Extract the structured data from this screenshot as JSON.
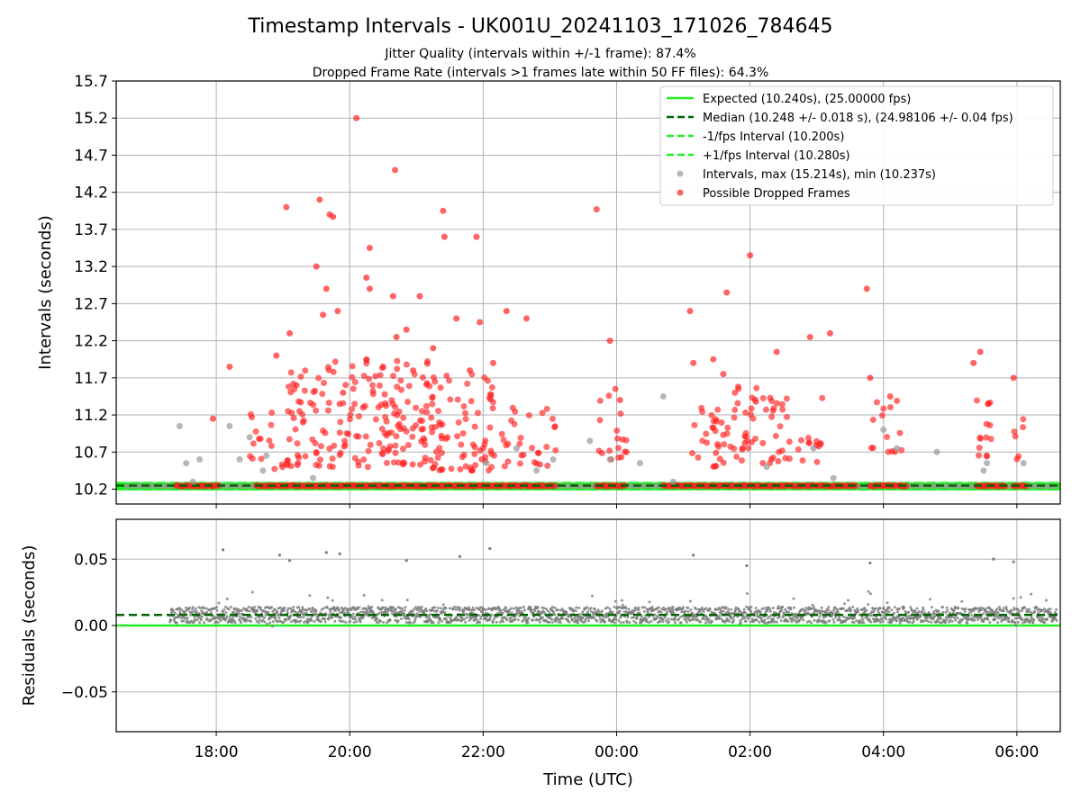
{
  "figure": {
    "title": "Timestamp Intervals - UK001U_20241103_171026_784645",
    "subtitle_1": "Jitter Quality (intervals within +/-1 frame): 87.4%",
    "subtitle_2": "Dropped Frame Rate (intervals >1 frames late within 50 FF files): 64.3%"
  },
  "chart_data": [
    {
      "type": "scatter",
      "ylabel": "Intervals (seconds)",
      "ylim": [
        10.0,
        15.7
      ],
      "y_ticks": [
        "10.2",
        "10.7",
        "11.2",
        "11.7",
        "12.2",
        "12.7",
        "13.2",
        "13.7",
        "14.2",
        "14.7",
        "15.2",
        "15.7"
      ],
      "x_ticks": [
        "18:00",
        "20:00",
        "22:00",
        "00:00",
        "02:00",
        "04:00",
        "06:00"
      ],
      "xlim_hours": [
        16.5,
        30.65
      ],
      "grid": true,
      "legend_position": "top-right",
      "legend": [
        "Expected (10.240s), (25.00000 fps)",
        "Median (10.248 +/- 0.018 s), (24.98106 +/- 0.04 fps)",
        "-1/fps Interval (10.200s)",
        "+1/fps Interval (10.280s)",
        "Intervals, max (15.214s), min (10.237s)",
        "Possible Dropped Frames"
      ],
      "reference_lines": {
        "expected": 10.24,
        "median": 10.248,
        "minus_1fps": 10.2,
        "plus_1fps": 10.28
      },
      "colors": {
        "expected": "#22ee22",
        "median": "#006400",
        "interval_lines": "#22ee22",
        "intervals": "#999999",
        "dropped": "#ff2222"
      },
      "dropped_frames": [
        [
          17.95,
          11.15
        ],
        [
          18.2,
          11.85
        ],
        [
          18.9,
          12.0
        ],
        [
          19.05,
          14.0
        ],
        [
          19.1,
          12.3
        ],
        [
          19.2,
          11.6
        ],
        [
          19.3,
          11.1
        ],
        [
          19.5,
          13.2
        ],
        [
          19.55,
          14.1
        ],
        [
          19.6,
          12.55
        ],
        [
          19.65,
          12.9
        ],
        [
          19.7,
          13.9
        ],
        [
          19.75,
          13.87
        ],
        [
          19.82,
          12.6
        ],
        [
          19.9,
          11.5
        ],
        [
          20.1,
          15.2
        ],
        [
          20.2,
          11.3
        ],
        [
          20.25,
          13.05
        ],
        [
          20.3,
          12.9
        ],
        [
          20.3,
          13.45
        ],
        [
          20.5,
          11.85
        ],
        [
          20.65,
          12.8
        ],
        [
          20.68,
          14.5
        ],
        [
          20.7,
          12.25
        ],
        [
          20.85,
          12.35
        ],
        [
          20.95,
          11.8
        ],
        [
          21.05,
          12.8
        ],
        [
          21.25,
          12.1
        ],
        [
          21.4,
          13.95
        ],
        [
          21.42,
          13.6
        ],
        [
          21.6,
          12.5
        ],
        [
          21.8,
          11.8
        ],
        [
          21.9,
          13.6
        ],
        [
          21.95,
          12.45
        ],
        [
          22.15,
          11.9
        ],
        [
          22.35,
          12.6
        ],
        [
          22.65,
          12.5
        ],
        [
          23.7,
          13.97
        ],
        [
          23.9,
          12.2
        ],
        [
          24.05,
          11.4
        ],
        [
          25.1,
          12.6
        ],
        [
          25.15,
          11.9
        ],
        [
          25.45,
          11.95
        ],
        [
          25.6,
          11.75
        ],
        [
          25.65,
          12.85
        ],
        [
          26.0,
          13.35
        ],
        [
          26.4,
          12.05
        ],
        [
          26.9,
          12.25
        ],
        [
          27.2,
          12.3
        ],
        [
          27.75,
          12.9
        ],
        [
          27.8,
          11.7
        ],
        [
          28.1,
          11.45
        ],
        [
          29.35,
          11.9
        ],
        [
          29.45,
          12.05
        ],
        [
          29.95,
          11.7
        ]
      ],
      "gray_intervals": [
        [
          17.45,
          11.05
        ],
        [
          17.55,
          10.55
        ],
        [
          17.65,
          10.3
        ],
        [
          17.75,
          10.6
        ],
        [
          18.2,
          11.05
        ],
        [
          18.35,
          10.6
        ],
        [
          18.5,
          10.9
        ],
        [
          18.7,
          10.45
        ],
        [
          18.75,
          10.65
        ],
        [
          19.45,
          10.35
        ],
        [
          22.05,
          10.55
        ],
        [
          22.5,
          10.75
        ],
        [
          22.8,
          10.45
        ],
        [
          23.05,
          10.6
        ],
        [
          23.6,
          10.85
        ],
        [
          23.9,
          10.6
        ],
        [
          24.35,
          10.55
        ],
        [
          24.7,
          11.45
        ],
        [
          24.85,
          10.3
        ],
        [
          26.25,
          10.5
        ],
        [
          26.95,
          10.75
        ],
        [
          27.25,
          10.35
        ],
        [
          28.0,
          11.0
        ],
        [
          28.2,
          10.75
        ],
        [
          28.8,
          10.7
        ],
        [
          29.5,
          10.45
        ],
        [
          29.55,
          10.55
        ],
        [
          30.1,
          10.55
        ]
      ]
    },
    {
      "type": "scatter",
      "ylabel": "Residuals (seconds)",
      "ylim": [
        -0.08,
        0.08
      ],
      "y_ticks": [
        "−0.05",
        "0.00",
        "0.05"
      ],
      "xlabel": "Time (UTC)",
      "x_ticks": [
        "18:00",
        "20:00",
        "22:00",
        "00:00",
        "02:00",
        "04:00",
        "06:00"
      ],
      "grid": true,
      "reference_lines": {
        "zero": 0.0,
        "median": 0.008
      },
      "colors": {
        "points": "#7a7a7a",
        "zero": "#22ee22",
        "median": "#006400"
      },
      "outliers": [
        [
          18.1,
          0.057
        ],
        [
          18.95,
          0.053
        ],
        [
          19.1,
          0.049
        ],
        [
          19.65,
          0.055
        ],
        [
          19.85,
          0.054
        ],
        [
          20.85,
          0.049
        ],
        [
          21.65,
          0.052
        ],
        [
          22.1,
          0.058
        ],
        [
          25.15,
          0.053
        ],
        [
          25.95,
          0.045
        ],
        [
          27.8,
          0.047
        ],
        [
          29.65,
          0.05
        ],
        [
          29.95,
          0.048
        ]
      ]
    }
  ]
}
